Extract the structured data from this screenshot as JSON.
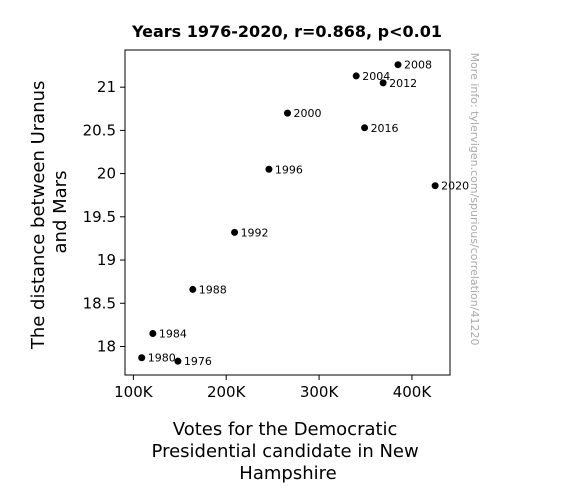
{
  "chart_data": {
    "type": "scatter",
    "title": "Years 1976-2020, r=0.868, p<0.01",
    "xlabel_lines": [
      "Votes for the Democratic",
      "Presidential candidate in New",
      "Hampshire"
    ],
    "ylabel_lines": [
      "The distance between Uranus",
      "and Mars"
    ],
    "xlim": [
      91000,
      441000
    ],
    "ylim": [
      17.67,
      21.43
    ],
    "x_ticks": [
      {
        "value": 100000,
        "label": "100K"
      },
      {
        "value": 200000,
        "label": "200K"
      },
      {
        "value": 300000,
        "label": "300K"
      },
      {
        "value": 400000,
        "label": "400K"
      }
    ],
    "y_ticks": [
      {
        "value": 18,
        "label": "18"
      },
      {
        "value": 18.5,
        "label": "18.5"
      },
      {
        "value": 19,
        "label": "19"
      },
      {
        "value": 19.5,
        "label": "19.5"
      },
      {
        "value": 20,
        "label": "20"
      },
      {
        "value": 20.5,
        "label": "20.5"
      },
      {
        "value": 21,
        "label": "21"
      }
    ],
    "grid": false,
    "marker_color": "#000000",
    "points": [
      {
        "label": "1976",
        "x": 148000,
        "y": 17.83
      },
      {
        "label": "1980",
        "x": 109000,
        "y": 17.87
      },
      {
        "label": "1984",
        "x": 121000,
        "y": 18.15
      },
      {
        "label": "1988",
        "x": 164000,
        "y": 18.66
      },
      {
        "label": "1992",
        "x": 209000,
        "y": 19.32
      },
      {
        "label": "1996",
        "x": 246000,
        "y": 20.05
      },
      {
        "label": "2000",
        "x": 266000,
        "y": 20.7
      },
      {
        "label": "2004",
        "x": 340000,
        "y": 21.13
      },
      {
        "label": "2008",
        "x": 385000,
        "y": 21.26
      },
      {
        "label": "2012",
        "x": 369000,
        "y": 21.05
      },
      {
        "label": "2016",
        "x": 349000,
        "y": 20.53
      },
      {
        "label": "2020",
        "x": 425000,
        "y": 19.86
      }
    ]
  },
  "watermark": "More info: tylervigen.com/spurious/correlation/41220"
}
